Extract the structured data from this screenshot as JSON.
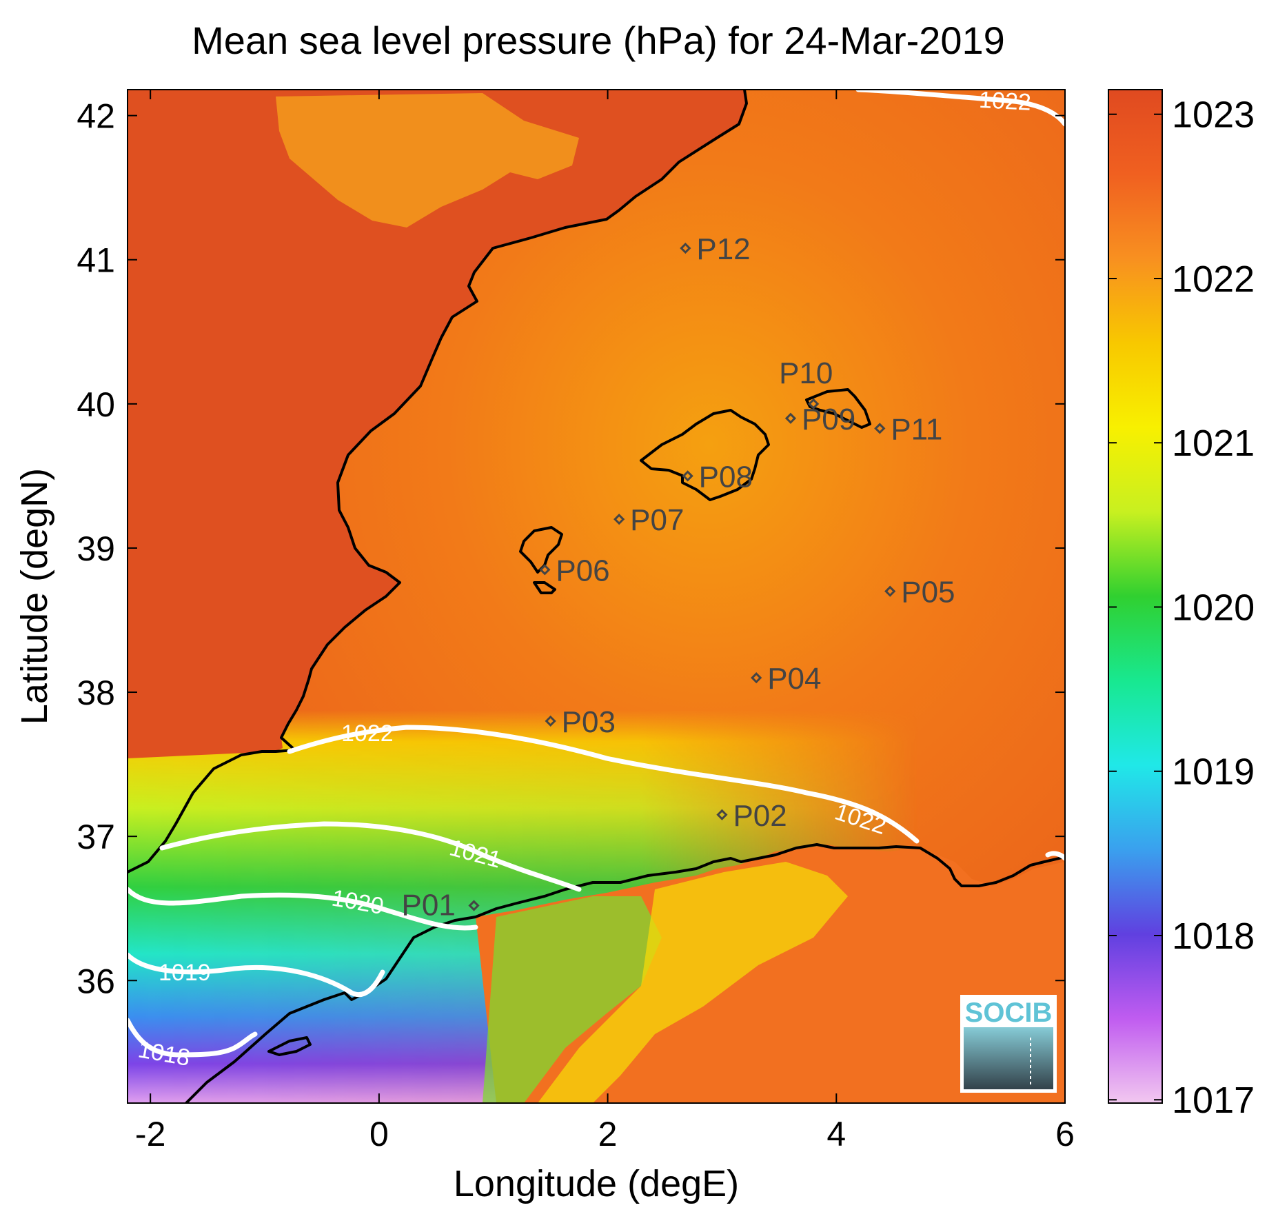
{
  "title": "Mean sea level pressure (hPa) for 24-Mar-2019",
  "xlabel": "Longitude (degE)",
  "ylabel": "Latitude (degN)",
  "xlim": [
    -2.2,
    6.0
  ],
  "ylim": [
    35.15,
    42.18
  ],
  "xticks": [
    -2,
    0,
    2,
    4,
    6
  ],
  "yticks": [
    36,
    37,
    38,
    39,
    40,
    41,
    42
  ],
  "colorbar": {
    "range": [
      1016.98,
      1023.15
    ],
    "ticks": [
      1017,
      1018,
      1019,
      1020,
      1021,
      1022,
      1023
    ],
    "colormap": [
      "#f2c8f0",
      "#c05cf0",
      "#6040e0",
      "#3aa0ee",
      "#20e8e8",
      "#18e890",
      "#30d030",
      "#c8f020",
      "#f8f000",
      "#f8c800",
      "#f89020",
      "#f06020",
      "#e04a20"
    ]
  },
  "stations": [
    {
      "name": "P01",
      "lon": 0.83,
      "lat": 36.52
    },
    {
      "name": "P02",
      "lon": 3.0,
      "lat": 37.15
    },
    {
      "name": "P03",
      "lon": 1.5,
      "lat": 37.8
    },
    {
      "name": "P04",
      "lon": 3.3,
      "lat": 38.1
    },
    {
      "name": "P05",
      "lon": 4.47,
      "lat": 38.7
    },
    {
      "name": "P06",
      "lon": 1.45,
      "lat": 38.85
    },
    {
      "name": "P07",
      "lon": 2.1,
      "lat": 39.2
    },
    {
      "name": "P08",
      "lon": 2.7,
      "lat": 39.5
    },
    {
      "name": "P09",
      "lon": 3.6,
      "lat": 39.9
    },
    {
      "name": "P10",
      "lon": 3.8,
      "lat": 40.0
    },
    {
      "name": "P11",
      "lon": 4.38,
      "lat": 39.83
    },
    {
      "name": "P12",
      "lon": 2.68,
      "lat": 41.08
    }
  ],
  "contours": [
    {
      "level": "1018"
    },
    {
      "level": "1019"
    },
    {
      "level": "1020"
    },
    {
      "level": "1021"
    },
    {
      "level": "1022"
    }
  ],
  "logo": {
    "text": "SOCIB"
  }
}
